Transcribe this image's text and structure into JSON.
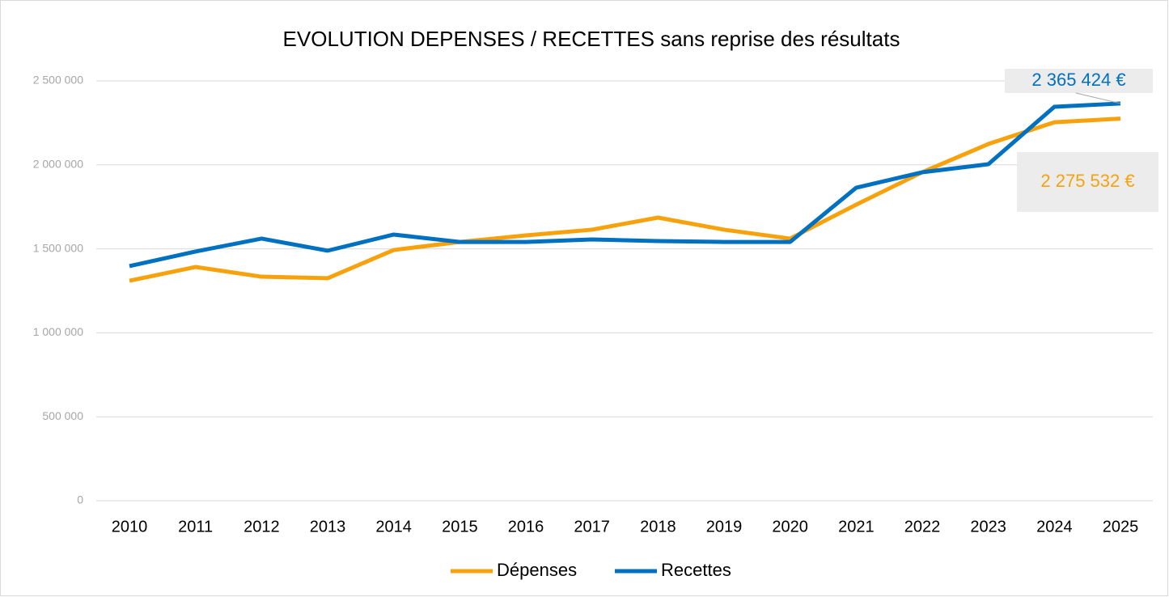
{
  "chart_data": {
    "type": "line",
    "title": "EVOLUTION DEPENSES / RECETTES sans reprise des résultats",
    "categories": [
      "2010",
      "2011",
      "2012",
      "2013",
      "2014",
      "2015",
      "2016",
      "2017",
      "2018",
      "2019",
      "2020",
      "2021",
      "2022",
      "2023",
      "2024",
      "2025"
    ],
    "series": [
      {
        "name": "Dépenses",
        "color": "#f7a20c",
        "values": [
          1310000,
          1392000,
          1334000,
          1325000,
          1493000,
          1541000,
          1580000,
          1614000,
          1686000,
          1614000,
          1561000,
          1763000,
          1956000,
          2124000,
          2254000,
          2275532
        ],
        "value_labels": [
          null,
          null,
          null,
          null,
          null,
          null,
          null,
          null,
          null,
          null,
          null,
          null,
          null,
          null,
          null,
          "2 275 532 €"
        ]
      },
      {
        "name": "Recettes",
        "color": "#0070c0",
        "values": [
          1397000,
          1484000,
          1561000,
          1489000,
          1585000,
          1541000,
          1541000,
          1556000,
          1546000,
          1541000,
          1541000,
          1864000,
          1956000,
          2004000,
          2346000,
          2365424
        ],
        "value_labels": [
          null,
          null,
          null,
          null,
          null,
          null,
          null,
          null,
          null,
          null,
          null,
          null,
          null,
          null,
          null,
          "2 365 424 €"
        ]
      }
    ],
    "ylim": [
      0,
      2500000
    ],
    "yticks": [
      0,
      {
        "value": 500000,
        "label": "500 000"
      },
      {
        "value": 1000000,
        "label": "1 000 000"
      },
      {
        "value": 1500000,
        "label": "1 500 000"
      },
      {
        "value": 2000000,
        "label": "2 000 000"
      },
      {
        "value": 2500000,
        "label": "2 500 000"
      }
    ],
    "grid": true,
    "legend": "bottom"
  }
}
